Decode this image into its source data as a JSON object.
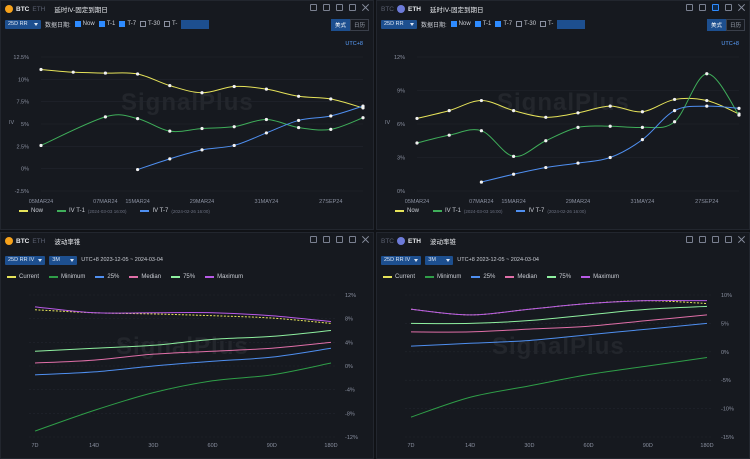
{
  "panels": {
    "iv_btc": {
      "tab_active": "BTC",
      "tab_inactive": "ETH",
      "title": "延时IV-固定到期日",
      "select": "25D RR",
      "date_label": "数据日期:",
      "checks": [
        "Now",
        "T-1",
        "T-7",
        "T-30",
        "T-"
      ],
      "seg": [
        "美式",
        "日历"
      ],
      "timezone": "UTC+8",
      "y_ticks": [
        "12.5%",
        "10%",
        "7.5%",
        "5%",
        "2.5%",
        "0%",
        "-2.5%"
      ],
      "y_unit": "IV",
      "x_ticks": [
        "05MAR24",
        "07MAR24",
        "15MAR24",
        "29MAR24",
        "31MAY24",
        "27SEP24"
      ],
      "legend": [
        {
          "label": "Now",
          "note": ""
        },
        {
          "label": "IV T-1",
          "note": "(2024-03-03 16:00)"
        },
        {
          "label": "IV T-7",
          "note": "(2024-02-26 16:00)"
        }
      ]
    },
    "iv_eth": {
      "tab_active": "ETH",
      "tab_inactive": "BTC",
      "title": "延时IV-固定到期日",
      "select": "25D RR",
      "date_label": "数据日期:",
      "checks": [
        "Now",
        "T-1",
        "T-7",
        "T-30",
        "T-"
      ],
      "seg": [
        "美式",
        "日历"
      ],
      "timezone": "UTC+8",
      "y_ticks": [
        "12%",
        "9%",
        "6%",
        "3%",
        "0%"
      ],
      "y_unit": "IV",
      "x_ticks": [
        "05MAR24",
        "07MAR24",
        "15MAR24",
        "29MAR24",
        "31MAY24",
        "27SEP24"
      ],
      "legend": [
        {
          "label": "Now",
          "note": ""
        },
        {
          "label": "IV T-1",
          "note": "(2024-03-03 16:00)"
        },
        {
          "label": "IV T-7",
          "note": "(2024-02-26 16:00)"
        }
      ]
    },
    "cone_btc": {
      "tab_active": "BTC",
      "tab_inactive": "ETH",
      "title": "波动率锥",
      "select": "25D RR IV",
      "select2": "3M",
      "info": "UTC+8 2023-12-05 ~ 2024-03-04",
      "legend": [
        "Current",
        "Minimum",
        "25%",
        "Median",
        "75%",
        "Maximum"
      ],
      "y_ticks": [
        "12%",
        "8%",
        "4%",
        "0%",
        "-4%",
        "-8%",
        "-12%"
      ],
      "x_ticks": [
        "7D",
        "14D",
        "30D",
        "60D",
        "90D",
        "180D"
      ]
    },
    "cone_eth": {
      "tab_active": "ETH",
      "tab_inactive": "BTC",
      "title": "波动率锥",
      "select": "25D RR IV",
      "select2": "3M",
      "info": "UTC+8 2023-12-05 ~ 2024-03-04",
      "legend": [
        "Current",
        "Minimum",
        "25%",
        "Median",
        "75%",
        "Maximum"
      ],
      "y_ticks": [
        "10%",
        "5%",
        "0%",
        "-5%",
        "-10%",
        "-15%"
      ],
      "x_ticks": [
        "7D",
        "14D",
        "30D",
        "60D",
        "90D",
        "180D"
      ]
    }
  },
  "watermark": "SignalPlus",
  "colors": {
    "now": "#e6e35a",
    "t1": "#3fae5a",
    "t7": "#4f8ff0",
    "current": "#e6e35a",
    "minimum": "#2f9e48",
    "p25": "#4f8ff0",
    "median": "#e06fa8",
    "p75": "#8ff0a0",
    "maximum": "#b85ae6"
  },
  "chart_data": [
    {
      "type": "line",
      "title": "延时IV-固定到期日",
      "x": [
        "05MAR24",
        "07MAR24",
        "08MAR24",
        "15MAR24",
        "22MAR24",
        "29MAR24",
        "26APR24",
        "31MAY24",
        "28JUN24",
        "27SEP24",
        "27DEC24"
      ],
      "ylabel": "IV",
      "ylim": [
        -2.5,
        12.5
      ],
      "series": [
        {
          "name": "Now",
          "values": [
            11.1,
            10.8,
            10.7,
            10.6,
            9.3,
            8.5,
            9.2,
            8.9,
            8.1,
            7.8,
            6.8
          ]
        },
        {
          "name": "IV T-1",
          "values": [
            2.6,
            null,
            5.8,
            5.6,
            4.2,
            4.5,
            4.7,
            5.5,
            4.6,
            4.4,
            5.7
          ]
        },
        {
          "name": "IV T-7",
          "values": [
            null,
            null,
            null,
            -0.1,
            1.1,
            2.1,
            2.6,
            4.0,
            5.4,
            5.9,
            7.0
          ]
        }
      ]
    },
    {
      "type": "line",
      "title": "延时IV-固定到期日",
      "x": [
        "05MAR24",
        "07MAR24",
        "08MAR24",
        "15MAR24",
        "22MAR24",
        "29MAR24",
        "26APR24",
        "31MAY24",
        "28JUN24",
        "27SEP24",
        "27DEC24"
      ],
      "ylabel": "IV",
      "ylim": [
        0,
        12
      ],
      "series": [
        {
          "name": "Now",
          "values": [
            6.5,
            7.2,
            8.1,
            7.2,
            6.6,
            7.0,
            7.6,
            7.1,
            8.2,
            8.1,
            6.9
          ]
        },
        {
          "name": "IV T-1",
          "values": [
            4.3,
            5.0,
            5.4,
            3.1,
            4.5,
            5.7,
            5.8,
            5.7,
            6.2,
            10.5,
            6.8
          ]
        },
        {
          "name": "IV T-7",
          "values": [
            null,
            null,
            0.8,
            1.5,
            2.1,
            2.5,
            3.0,
            4.6,
            7.2,
            7.6,
            7.4
          ]
        }
      ]
    },
    {
      "type": "line",
      "title": "波动率锥",
      "categories": [
        "7D",
        "14D",
        "30D",
        "60D",
        "90D",
        "180D"
      ],
      "ylim": [
        -12,
        12
      ],
      "series": [
        {
          "name": "Current",
          "values": [
            9.5,
            9.0,
            8.8,
            8.5,
            8.1,
            7.2
          ]
        },
        {
          "name": "Minimum",
          "values": [
            -11.0,
            -7.5,
            -4.5,
            -2.5,
            -1.5,
            0.5
          ]
        },
        {
          "name": "25%",
          "values": [
            -1.5,
            -1.0,
            0.0,
            0.8,
            1.5,
            3.0
          ]
        },
        {
          "name": "Median",
          "values": [
            0.5,
            1.0,
            2.0,
            2.5,
            3.0,
            4.0
          ]
        },
        {
          "name": "75%",
          "values": [
            2.5,
            3.0,
            3.5,
            4.5,
            5.0,
            6.0
          ]
        },
        {
          "name": "Maximum",
          "values": [
            10.0,
            9.0,
            9.0,
            9.0,
            8.5,
            7.5
          ]
        }
      ]
    },
    {
      "type": "line",
      "title": "波动率锥",
      "categories": [
        "7D",
        "14D",
        "30D",
        "60D",
        "90D",
        "180D"
      ],
      "ylim": [
        -15,
        10
      ],
      "series": [
        {
          "name": "Current",
          "values": [
            7.5,
            6.5,
            7.5,
            8.5,
            9.0,
            8.5
          ]
        },
        {
          "name": "Minimum",
          "values": [
            -11.5,
            -8.0,
            -6.0,
            -4.0,
            -2.5,
            -1.0
          ]
        },
        {
          "name": "25%",
          "values": [
            1.0,
            1.5,
            2.0,
            3.0,
            4.0,
            5.0
          ]
        },
        {
          "name": "Median",
          "values": [
            3.5,
            3.5,
            4.0,
            4.5,
            5.5,
            6.5
          ]
        },
        {
          "name": "75%",
          "values": [
            5.0,
            5.0,
            5.5,
            6.5,
            7.5,
            8.0
          ]
        },
        {
          "name": "Maximum",
          "values": [
            7.5,
            6.5,
            7.5,
            8.5,
            9.0,
            9.0
          ]
        }
      ]
    }
  ]
}
